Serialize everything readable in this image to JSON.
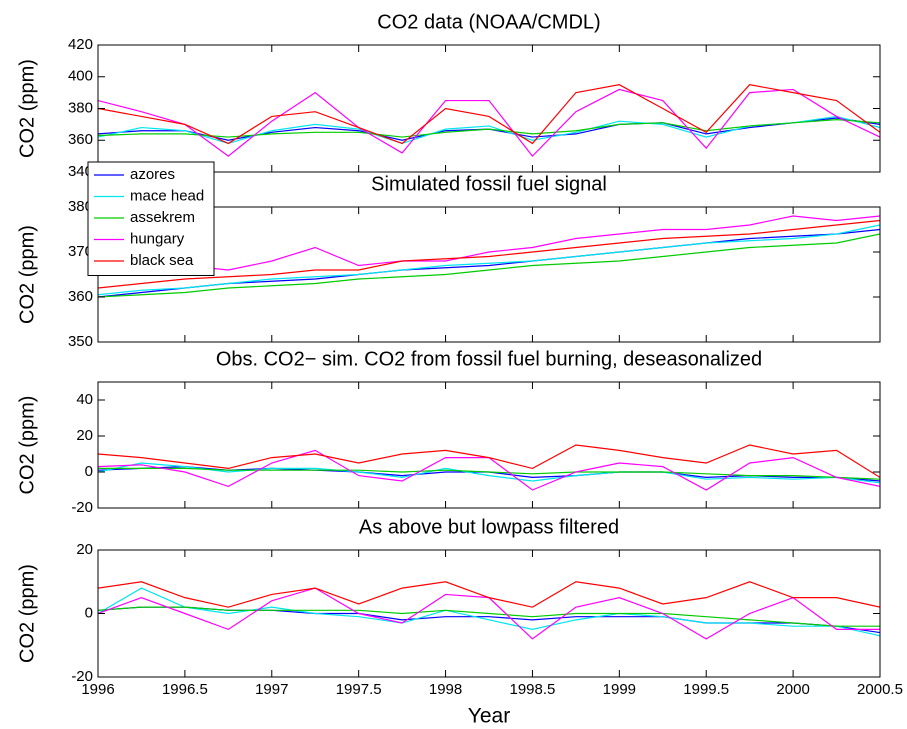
{
  "chart_data": [
    {
      "type": "line",
      "title": "CO2 data (NOAA/CMDL)",
      "ylabel": "CO2 (ppm)",
      "x": [
        1996,
        1996.25,
        1996.5,
        1996.75,
        1997,
        1997.25,
        1997.5,
        1997.75,
        1998,
        1998.25,
        1998.5,
        1998.75,
        1999,
        1999.25,
        1999.5,
        1999.75,
        2000,
        2000.25,
        2000.5
      ],
      "xlim": [
        1996,
        2000.5
      ],
      "ylim": [
        340,
        420
      ],
      "yticks": [
        340,
        360,
        380,
        400,
        420
      ],
      "series": [
        {
          "name": "azores",
          "color": "#0000ff",
          "values": [
            364,
            366,
            366,
            360,
            365,
            368,
            366,
            360,
            366,
            367,
            362,
            364,
            370,
            371,
            364,
            368,
            371,
            374,
            370
          ]
        },
        {
          "name": "mace head",
          "color": "#00e5ee",
          "values": [
            362,
            368,
            366,
            358,
            366,
            370,
            367,
            358,
            367,
            369,
            360,
            365,
            372,
            370,
            362,
            369,
            371,
            375,
            368
          ]
        },
        {
          "name": "assekrem",
          "color": "#00cc00",
          "values": [
            363,
            364,
            364,
            362,
            364,
            365,
            365,
            362,
            365,
            367,
            364,
            366,
            370,
            371,
            366,
            369,
            371,
            373,
            371
          ]
        },
        {
          "name": "hungary",
          "color": "#ff00ff",
          "values": [
            385,
            378,
            370,
            350,
            372,
            390,
            368,
            352,
            385,
            385,
            350,
            378,
            392,
            385,
            355,
            390,
            392,
            375,
            362
          ]
        },
        {
          "name": "black sea",
          "color": "#ff0000",
          "values": [
            380,
            375,
            370,
            358,
            375,
            378,
            368,
            358,
            380,
            375,
            358,
            390,
            395,
            380,
            365,
            395,
            390,
            385,
            365
          ]
        }
      ]
    },
    {
      "type": "line",
      "title": "Simulated fossil fuel signal",
      "ylabel": "CO2 (ppm)",
      "x": [
        1996,
        1996.25,
        1996.5,
        1996.75,
        1997,
        1997.25,
        1997.5,
        1997.75,
        1998,
        1998.25,
        1998.5,
        1998.75,
        1999,
        1999.25,
        1999.5,
        1999.75,
        2000,
        2000.25,
        2000.5
      ],
      "xlim": [
        1996,
        2000.5
      ],
      "ylim": [
        350,
        380
      ],
      "yticks": [
        350,
        360,
        370,
        380
      ],
      "series": [
        {
          "name": "azores",
          "color": "#0000ff",
          "values": [
            360,
            361,
            362,
            363,
            363.5,
            364,
            365,
            366,
            366.5,
            367,
            368,
            369,
            370,
            371,
            372,
            373,
            373.5,
            374,
            375
          ]
        },
        {
          "name": "mace head",
          "color": "#00e5ee",
          "values": [
            360.5,
            361.5,
            362,
            363,
            364,
            364.5,
            365,
            366,
            367,
            367.5,
            368,
            369,
            370,
            371,
            372,
            372.5,
            373,
            374,
            376
          ]
        },
        {
          "name": "assekrem",
          "color": "#00cc00",
          "values": [
            360,
            360.5,
            361,
            362,
            362.5,
            363,
            364,
            364.5,
            365,
            366,
            367,
            367.5,
            368,
            369,
            370,
            371,
            371.5,
            372,
            374
          ]
        },
        {
          "name": "hungary",
          "color": "#ff00ff",
          "values": [
            367,
            366,
            367,
            366,
            368,
            371,
            367,
            368,
            368,
            370,
            371,
            373,
            374,
            375,
            375,
            376,
            378,
            377,
            378
          ]
        },
        {
          "name": "black sea",
          "color": "#ff0000",
          "values": [
            362,
            363,
            364,
            364.5,
            365,
            366,
            366,
            368,
            368.5,
            369,
            370,
            371,
            372,
            373,
            373.5,
            374,
            375,
            376,
            377
          ]
        }
      ]
    },
    {
      "type": "line",
      "title": "Obs. CO2− sim. CO2 from fossil fuel burning, deseasonalized",
      "ylabel": "CO2 (ppm)",
      "x": [
        1996,
        1996.25,
        1996.5,
        1996.75,
        1997,
        1997.25,
        1997.5,
        1997.75,
        1998,
        1998.25,
        1998.5,
        1998.75,
        1999,
        1999.25,
        1999.5,
        1999.75,
        2000,
        2000.25,
        2000.5
      ],
      "xlim": [
        1996,
        2000.5
      ],
      "ylim": [
        -20,
        50
      ],
      "yticks": [
        -20,
        0,
        20,
        40
      ],
      "series": [
        {
          "name": "azores",
          "color": "#0000ff",
          "values": [
            1,
            2,
            3,
            1,
            2,
            1,
            0,
            -2,
            0,
            0,
            -3,
            -2,
            0,
            0,
            -3,
            -2,
            -3,
            -3,
            -5
          ]
        },
        {
          "name": "mace head",
          "color": "#00e5ee",
          "values": [
            0,
            5,
            3,
            0,
            2,
            2,
            0,
            -3,
            2,
            -2,
            -5,
            -2,
            0,
            0,
            -4,
            -3,
            -4,
            -3,
            -6
          ]
        },
        {
          "name": "assekrem",
          "color": "#00cc00",
          "values": [
            2,
            2,
            2,
            1,
            1,
            1,
            1,
            0,
            1,
            0,
            -1,
            0,
            0,
            0,
            -1,
            -2,
            -2,
            -3,
            -4
          ]
        },
        {
          "name": "hungary",
          "color": "#ff00ff",
          "values": [
            3,
            4,
            0,
            -8,
            5,
            12,
            -2,
            -5,
            8,
            8,
            -10,
            0,
            5,
            3,
            -10,
            5,
            8,
            -3,
            -8
          ]
        },
        {
          "name": "black sea",
          "color": "#ff0000",
          "values": [
            10,
            8,
            5,
            2,
            8,
            10,
            5,
            10,
            12,
            8,
            2,
            15,
            12,
            8,
            5,
            15,
            10,
            12,
            -3
          ]
        }
      ]
    },
    {
      "type": "line",
      "title": "As above but lowpass filtered",
      "ylabel": "CO2 (ppm)",
      "xlabel": "Year",
      "x": [
        1996,
        1996.25,
        1996.5,
        1996.75,
        1997,
        1997.25,
        1997.5,
        1997.75,
        1998,
        1998.25,
        1998.5,
        1998.75,
        1999,
        1999.25,
        1999.5,
        1999.75,
        2000,
        2000.25,
        2000.5
      ],
      "xlim": [
        1996,
        2000.5
      ],
      "xticks": [
        1996,
        1996.5,
        1997,
        1997.5,
        1998,
        1998.5,
        1999,
        1999.5,
        2000,
        2000.5
      ],
      "ylim": [
        -20,
        20
      ],
      "yticks": [
        -20,
        0,
        20
      ],
      "series": [
        {
          "name": "azores",
          "color": "#0000ff",
          "values": [
            1,
            2,
            2,
            1,
            1,
            0,
            0,
            -2,
            -1,
            -1,
            -2,
            -1,
            -1,
            -1,
            -3,
            -3,
            -3,
            -4,
            -6
          ]
        },
        {
          "name": "mace head",
          "color": "#00e5ee",
          "values": [
            0,
            8,
            2,
            0,
            2,
            0,
            -1,
            -3,
            1,
            -2,
            -5,
            -2,
            0,
            -1,
            -3,
            -3,
            -4,
            -4,
            -7
          ]
        },
        {
          "name": "assekrem",
          "color": "#00cc00",
          "values": [
            1,
            2,
            2,
            1,
            1,
            1,
            1,
            0,
            1,
            0,
            -1,
            0,
            0,
            0,
            -1,
            -2,
            -3,
            -4,
            -4
          ]
        },
        {
          "name": "hungary",
          "color": "#ff00ff",
          "values": [
            0,
            5,
            0,
            -5,
            4,
            8,
            0,
            -3,
            6,
            5,
            -8,
            2,
            5,
            0,
            -8,
            0,
            5,
            -5,
            -5
          ]
        },
        {
          "name": "black sea",
          "color": "#ff0000",
          "values": [
            8,
            10,
            5,
            2,
            6,
            8,
            3,
            8,
            10,
            5,
            2,
            10,
            8,
            3,
            5,
            10,
            5,
            5,
            2
          ]
        }
      ]
    }
  ]
}
